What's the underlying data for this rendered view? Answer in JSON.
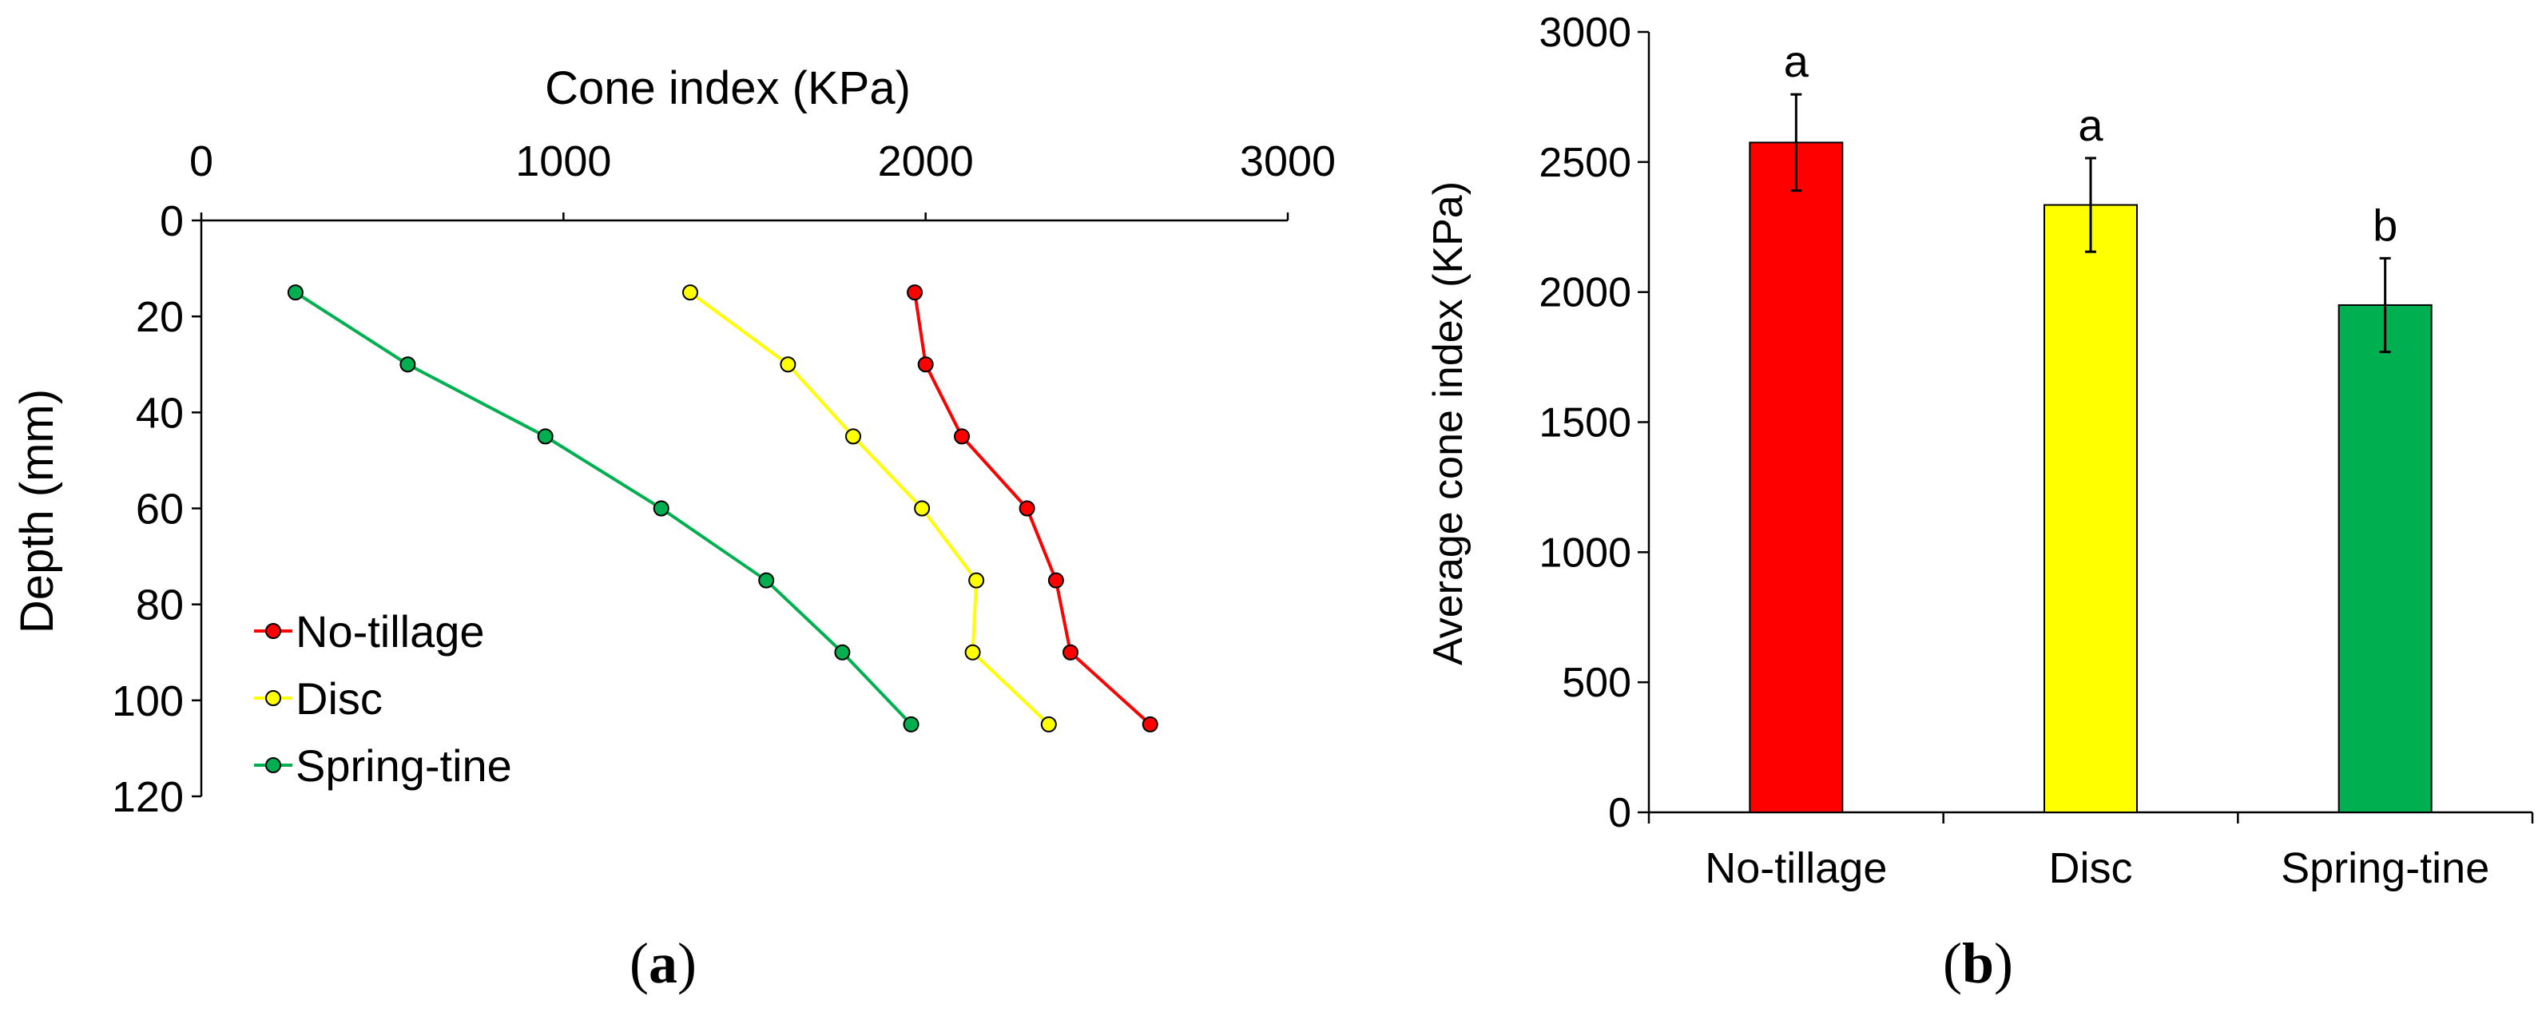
{
  "chart_data": [
    {
      "type": "line",
      "panel_label": "(a)",
      "panel_letter": "a",
      "xlabel": "Cone index (KPa)",
      "ylabel": "Depth (mm)",
      "xlim": [
        0,
        3000
      ],
      "ylim": [
        0,
        120
      ],
      "x_ticks": [
        "0",
        "1000",
        "2000",
        "3000"
      ],
      "y_ticks": [
        "0",
        "20",
        "40",
        "60",
        "80",
        "100",
        "120"
      ],
      "y_inverted": true,
      "x_axis_position": "top",
      "legend_position": "bottom-left",
      "series": [
        {
          "name": "No-tillage",
          "color": "#ff0000",
          "points": [
            [
              1970,
              15
            ],
            [
              2000,
              30
            ],
            [
              2100,
              45
            ],
            [
              2280,
              60
            ],
            [
              2360,
              75
            ],
            [
              2400,
              90
            ],
            [
              2620,
              105
            ]
          ]
        },
        {
          "name": "Disc",
          "color": "#ffff00",
          "points": [
            [
              1350,
              15
            ],
            [
              1620,
              30
            ],
            [
              1800,
              45
            ],
            [
              1990,
              60
            ],
            [
              2140,
              75
            ],
            [
              2130,
              90
            ],
            [
              2340,
              105
            ]
          ]
        },
        {
          "name": "Spring-tine",
          "color": "#00b050",
          "points": [
            [
              260,
              15
            ],
            [
              570,
              30
            ],
            [
              950,
              45
            ],
            [
              1270,
              60
            ],
            [
              1560,
              75
            ],
            [
              1770,
              90
            ],
            [
              1960,
              105
            ]
          ]
        }
      ]
    },
    {
      "type": "bar",
      "panel_label": "(b)",
      "panel_letter": "b",
      "xlabel": "",
      "ylabel": "Average cone index (KPa)",
      "ylim": [
        0,
        3000
      ],
      "y_ticks": [
        "0",
        "500",
        "1000",
        "1500",
        "2000",
        "2500",
        "3000"
      ],
      "categories": [
        "No-tillage",
        "Disc",
        "Spring-tine"
      ],
      "values": [
        2575,
        2335,
        1950
      ],
      "errors": [
        185,
        180,
        180
      ],
      "significance_letters": [
        "a",
        "a",
        "b"
      ],
      "colors": [
        "#ff0000",
        "#ffff00",
        "#00b050"
      ]
    }
  ]
}
